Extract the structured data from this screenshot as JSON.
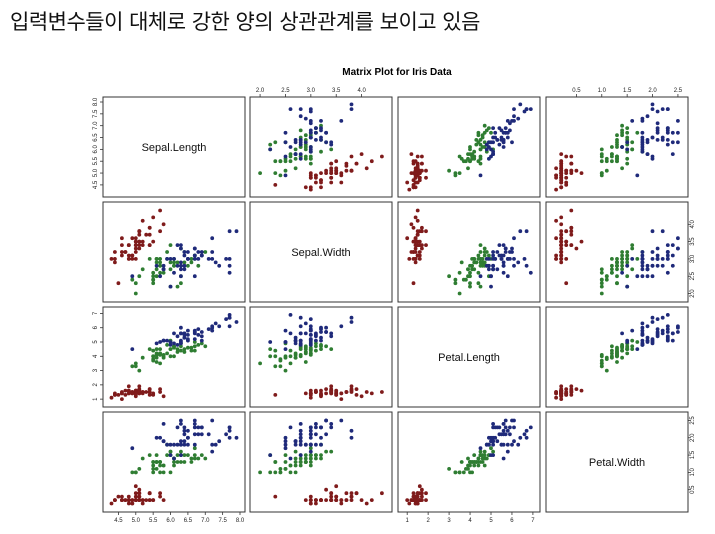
{
  "slide": {
    "heading": "입력변수들이 대체로 강한 양의 상관관계를 보이고 있음"
  },
  "chart_data": {
    "type": "scatter",
    "title": "Matrix Plot for Iris Data",
    "variables": [
      "Sepal.Length",
      "Sepal.Width",
      "Petal.Length",
      "Petal.Width"
    ],
    "ranges": {
      "Sepal.Length": [
        4.2,
        8.0
      ],
      "Sepal.Width": [
        1.9,
        4.5
      ],
      "Petal.Length": [
        0.8,
        7.1
      ],
      "Petal.Width": [
        0.0,
        2.6
      ]
    },
    "ticks": {
      "Sepal.Length": [
        "4.5",
        "5.0",
        "5.5",
        "6.0",
        "6.5",
        "7.0",
        "7.5",
        "8.0"
      ],
      "Sepal.Width": [
        "2.0",
        "2.5",
        "3.0",
        "3.5",
        "4.0"
      ],
      "Petal.Length": [
        "1",
        "2",
        "3",
        "4",
        "5",
        "6",
        "7"
      ],
      "Petal.Width": [
        "0.5",
        "1.0",
        "1.5",
        "2.0",
        "2.5"
      ]
    },
    "colors": {
      "setosa": "#7f1b1b",
      "versicolor": "#2f7d32",
      "virginica": "#1f2a7a"
    },
    "series": [
      {
        "values": [
          [
            5.1,
            3.5,
            1.4,
            0.2
          ],
          [
            4.9,
            3.0,
            1.4,
            0.2
          ],
          [
            4.7,
            3.2,
            1.3,
            0.2
          ],
          [
            4.6,
            3.1,
            1.5,
            0.2
          ],
          [
            5.0,
            3.6,
            1.4,
            0.2
          ],
          [
            5.4,
            3.9,
            1.7,
            0.4
          ],
          [
            4.6,
            3.4,
            1.4,
            0.3
          ],
          [
            5.0,
            3.4,
            1.5,
            0.2
          ],
          [
            4.4,
            2.9,
            1.4,
            0.2
          ],
          [
            4.9,
            3.1,
            1.5,
            0.1
          ],
          [
            5.4,
            3.7,
            1.5,
            0.2
          ],
          [
            4.8,
            3.4,
            1.6,
            0.2
          ],
          [
            4.8,
            3.0,
            1.4,
            0.1
          ],
          [
            4.3,
            3.0,
            1.1,
            0.1
          ],
          [
            5.8,
            4.0,
            1.2,
            0.2
          ],
          [
            5.7,
            4.4,
            1.5,
            0.4
          ],
          [
            5.4,
            3.9,
            1.3,
            0.4
          ],
          [
            5.1,
            3.5,
            1.4,
            0.3
          ],
          [
            5.7,
            3.8,
            1.7,
            0.3
          ],
          [
            5.1,
            3.8,
            1.5,
            0.3
          ],
          [
            5.4,
            3.4,
            1.7,
            0.2
          ],
          [
            5.1,
            3.7,
            1.5,
            0.4
          ],
          [
            4.6,
            3.6,
            1.0,
            0.2
          ],
          [
            5.1,
            3.3,
            1.7,
            0.5
          ],
          [
            4.8,
            3.4,
            1.9,
            0.2
          ],
          [
            5.0,
            3.0,
            1.6,
            0.2
          ],
          [
            5.0,
            3.4,
            1.6,
            0.4
          ],
          [
            5.2,
            3.5,
            1.5,
            0.2
          ],
          [
            5.2,
            3.4,
            1.4,
            0.2
          ],
          [
            4.7,
            3.2,
            1.6,
            0.2
          ],
          [
            4.8,
            3.1,
            1.6,
            0.2
          ],
          [
            5.4,
            3.4,
            1.5,
            0.4
          ],
          [
            5.2,
            4.1,
            1.5,
            0.1
          ],
          [
            5.5,
            4.2,
            1.4,
            0.2
          ],
          [
            4.9,
            3.1,
            1.5,
            0.2
          ],
          [
            5.0,
            3.2,
            1.2,
            0.2
          ],
          [
            5.5,
            3.5,
            1.3,
            0.2
          ],
          [
            4.9,
            3.6,
            1.4,
            0.1
          ],
          [
            4.4,
            3.0,
            1.3,
            0.2
          ],
          [
            5.1,
            3.4,
            1.5,
            0.2
          ],
          [
            5.0,
            3.5,
            1.3,
            0.3
          ],
          [
            4.5,
            2.3,
            1.3,
            0.3
          ],
          [
            4.4,
            3.2,
            1.3,
            0.2
          ],
          [
            5.0,
            3.5,
            1.6,
            0.6
          ],
          [
            5.1,
            3.8,
            1.9,
            0.4
          ],
          [
            4.8,
            3.0,
            1.4,
            0.3
          ],
          [
            5.1,
            3.8,
            1.6,
            0.2
          ],
          [
            4.6,
            3.2,
            1.4,
            0.2
          ],
          [
            5.3,
            3.7,
            1.5,
            0.2
          ],
          [
            5.0,
            3.3,
            1.4,
            0.2
          ]
        ],
        "color": "#7f1b1b"
      },
      {
        "values": [
          [
            7.0,
            3.2,
            4.7,
            1.4
          ],
          [
            6.4,
            3.2,
            4.5,
            1.5
          ],
          [
            6.9,
            3.1,
            4.9,
            1.5
          ],
          [
            5.5,
            2.3,
            4.0,
            1.3
          ],
          [
            6.5,
            2.8,
            4.6,
            1.5
          ],
          [
            5.7,
            2.8,
            4.5,
            1.3
          ],
          [
            6.3,
            3.3,
            4.7,
            1.6
          ],
          [
            4.9,
            2.4,
            3.3,
            1.0
          ],
          [
            6.6,
            2.9,
            4.6,
            1.3
          ],
          [
            5.2,
            2.7,
            3.9,
            1.4
          ],
          [
            5.0,
            2.0,
            3.5,
            1.0
          ],
          [
            5.9,
            3.0,
            4.2,
            1.5
          ],
          [
            6.0,
            2.2,
            4.0,
            1.0
          ],
          [
            6.1,
            2.9,
            4.7,
            1.4
          ],
          [
            5.6,
            2.9,
            3.6,
            1.3
          ],
          [
            6.7,
            3.1,
            4.4,
            1.4
          ],
          [
            5.6,
            3.0,
            4.5,
            1.5
          ],
          [
            5.8,
            2.7,
            4.1,
            1.0
          ],
          [
            6.2,
            2.2,
            4.5,
            1.5
          ],
          [
            5.6,
            2.5,
            3.9,
            1.1
          ],
          [
            5.9,
            3.2,
            4.8,
            1.8
          ],
          [
            6.1,
            2.8,
            4.0,
            1.3
          ],
          [
            6.3,
            2.5,
            4.9,
            1.5
          ],
          [
            6.1,
            2.8,
            4.7,
            1.2
          ],
          [
            6.4,
            2.9,
            4.3,
            1.3
          ],
          [
            6.6,
            3.0,
            4.4,
            1.4
          ],
          [
            6.8,
            2.8,
            4.8,
            1.4
          ],
          [
            6.7,
            3.0,
            5.0,
            1.7
          ],
          [
            6.0,
            2.9,
            4.5,
            1.5
          ],
          [
            5.7,
            2.6,
            3.5,
            1.0
          ],
          [
            5.5,
            2.4,
            3.8,
            1.1
          ],
          [
            5.5,
            2.4,
            3.7,
            1.0
          ],
          [
            5.8,
            2.7,
            3.9,
            1.2
          ],
          [
            6.0,
            2.7,
            5.1,
            1.6
          ],
          [
            5.4,
            3.0,
            4.5,
            1.5
          ],
          [
            6.0,
            3.4,
            4.5,
            1.6
          ],
          [
            6.7,
            3.1,
            4.7,
            1.5
          ],
          [
            6.3,
            2.3,
            4.4,
            1.3
          ],
          [
            5.6,
            3.0,
            4.1,
            1.3
          ],
          [
            5.5,
            2.5,
            4.0,
            1.3
          ],
          [
            5.5,
            2.6,
            4.4,
            1.2
          ],
          [
            6.1,
            3.0,
            4.6,
            1.4
          ],
          [
            5.8,
            2.6,
            4.0,
            1.2
          ],
          [
            5.0,
            2.3,
            3.3,
            1.0
          ],
          [
            5.6,
            2.7,
            4.2,
            1.3
          ],
          [
            5.7,
            3.0,
            4.2,
            1.2
          ],
          [
            5.7,
            2.9,
            4.2,
            1.3
          ],
          [
            6.2,
            2.9,
            4.3,
            1.3
          ],
          [
            5.1,
            2.5,
            3.0,
            1.1
          ],
          [
            5.7,
            2.8,
            4.1,
            1.3
          ]
        ],
        "color": "#2f7d32"
      },
      {
        "values": [
          [
            6.3,
            3.3,
            6.0,
            2.5
          ],
          [
            5.8,
            2.7,
            5.1,
            1.9
          ],
          [
            7.1,
            3.0,
            5.9,
            2.1
          ],
          [
            6.3,
            2.9,
            5.6,
            1.8
          ],
          [
            6.5,
            3.0,
            5.8,
            2.2
          ],
          [
            7.6,
            3.0,
            6.6,
            2.1
          ],
          [
            4.9,
            2.5,
            4.5,
            1.7
          ],
          [
            7.3,
            2.9,
            6.3,
            1.8
          ],
          [
            6.7,
            2.5,
            5.8,
            1.8
          ],
          [
            7.2,
            3.6,
            6.1,
            2.5
          ],
          [
            6.5,
            3.2,
            5.1,
            2.0
          ],
          [
            6.4,
            2.7,
            5.3,
            1.9
          ],
          [
            6.8,
            3.0,
            5.5,
            2.1
          ],
          [
            5.7,
            2.5,
            5.0,
            2.0
          ],
          [
            5.8,
            2.8,
            5.1,
            2.4
          ],
          [
            6.4,
            3.2,
            5.3,
            2.3
          ],
          [
            6.5,
            3.0,
            5.5,
            1.8
          ],
          [
            7.7,
            3.8,
            6.7,
            2.2
          ],
          [
            7.7,
            2.6,
            6.9,
            2.3
          ],
          [
            6.0,
            2.2,
            5.0,
            1.5
          ],
          [
            6.9,
            3.2,
            5.7,
            2.3
          ],
          [
            5.6,
            2.8,
            4.9,
            2.0
          ],
          [
            7.7,
            2.8,
            6.7,
            2.0
          ],
          [
            6.3,
            2.7,
            4.9,
            1.8
          ],
          [
            6.7,
            3.3,
            5.7,
            2.1
          ],
          [
            7.2,
            3.2,
            6.0,
            1.8
          ],
          [
            6.2,
            2.8,
            4.8,
            1.8
          ],
          [
            6.1,
            3.0,
            4.9,
            1.8
          ],
          [
            6.4,
            2.8,
            5.6,
            2.1
          ],
          [
            7.2,
            3.0,
            5.8,
            1.6
          ],
          [
            7.4,
            2.8,
            6.1,
            1.9
          ],
          [
            7.9,
            3.8,
            6.4,
            2.0
          ],
          [
            6.4,
            2.8,
            5.6,
            2.2
          ],
          [
            6.3,
            2.8,
            5.1,
            1.5
          ],
          [
            6.1,
            2.6,
            5.6,
            1.4
          ],
          [
            7.7,
            3.0,
            6.1,
            2.3
          ],
          [
            6.3,
            3.4,
            5.6,
            2.4
          ],
          [
            6.4,
            3.1,
            5.5,
            1.8
          ],
          [
            6.0,
            3.0,
            4.8,
            1.8
          ],
          [
            6.9,
            3.1,
            5.4,
            2.1
          ],
          [
            6.7,
            3.1,
            5.6,
            2.4
          ],
          [
            6.9,
            3.1,
            5.1,
            2.3
          ],
          [
            5.8,
            2.7,
            5.1,
            1.9
          ],
          [
            6.8,
            3.2,
            5.9,
            2.3
          ],
          [
            6.7,
            3.3,
            5.7,
            2.5
          ],
          [
            6.7,
            3.0,
            5.2,
            2.3
          ],
          [
            6.3,
            2.5,
            5.0,
            1.9
          ],
          [
            6.5,
            3.0,
            5.2,
            2.0
          ],
          [
            6.2,
            3.4,
            5.4,
            2.3
          ],
          [
            5.9,
            3.0,
            5.1,
            1.8
          ]
        ],
        "color": "#1f2a7a"
      }
    ],
    "grid": false,
    "legend": "none"
  }
}
